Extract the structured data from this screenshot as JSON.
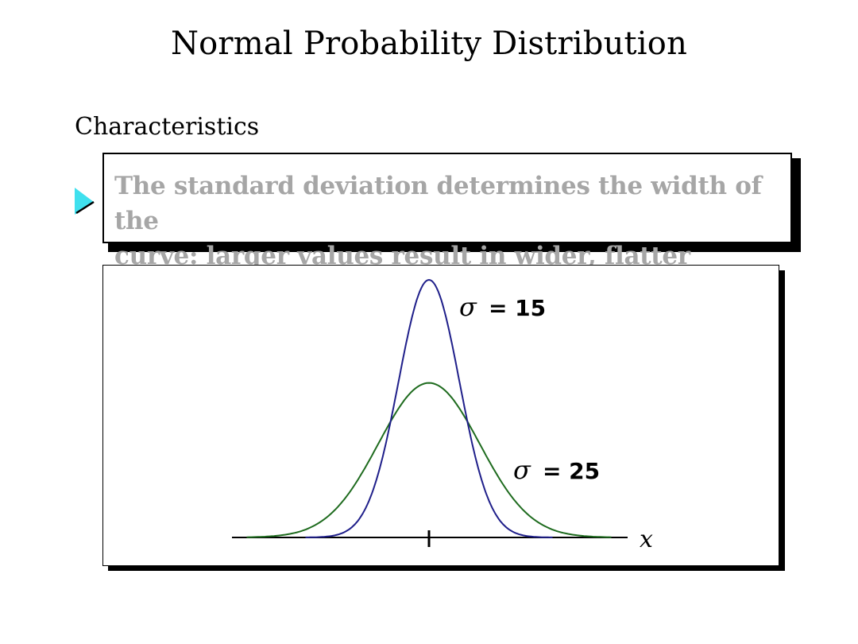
{
  "title": "Normal Probability Distribution",
  "section": "Characteristics",
  "bullet": {
    "line1": "The standard deviation determines the width of the",
    "line2": "curve: larger values result in wider, flatter curves."
  },
  "figure": {
    "axis_label": "x",
    "curves": [
      {
        "symbol": "σ",
        "label": "= 15",
        "sigma": 15,
        "color": "#1f1f8a"
      },
      {
        "symbol": "σ",
        "label": "= 25",
        "sigma": 25,
        "color": "#1e6b1e"
      }
    ]
  },
  "colors": {
    "bullet_marker": "#3fe0ee",
    "callout_text": "#a6a6a6"
  }
}
